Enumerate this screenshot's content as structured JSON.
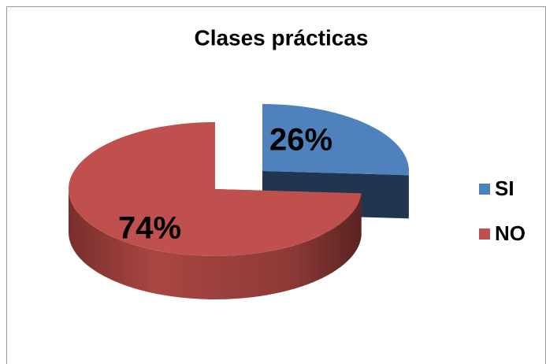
{
  "chart_data": {
    "type": "pie",
    "title": "Clases prácticas",
    "categories": [
      "SI",
      "NO"
    ],
    "values": [
      26,
      74
    ],
    "value_labels": [
      "26%",
      "74%"
    ],
    "colors": [
      "#4f81bd",
      "#c0504d"
    ],
    "legend": "right",
    "exploded": true
  }
}
